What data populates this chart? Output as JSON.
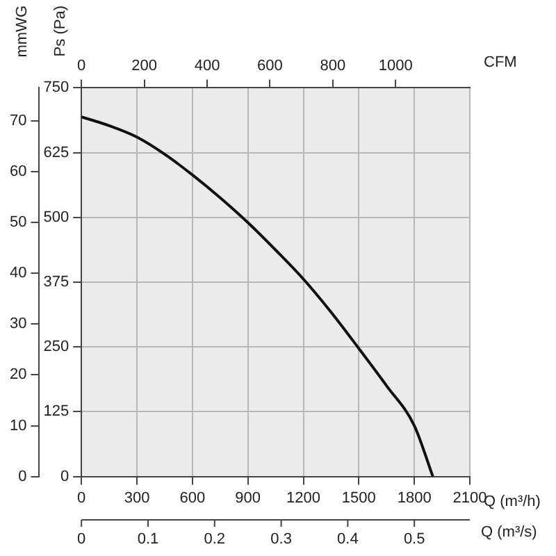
{
  "chart_data": {
    "type": "line",
    "xlabel": "Q (m³/h)",
    "x2label": "CFM",
    "ylabel": "Ps (Pa)",
    "y2label": "mmWG",
    "x": [
      0,
      150,
      300,
      450,
      600,
      750,
      900,
      1050,
      1200,
      1350,
      1500,
      1650,
      1800,
      1900
    ],
    "series": [
      {
        "color": "#111111",
        "values": [
          694,
          677,
          655,
          622,
          582,
          538,
          490,
          437,
          381,
          317,
          247,
          175,
          98,
          0
        ]
      }
    ],
    "xlim": [
      0,
      2100
    ],
    "xticks": [
      0,
      300,
      600,
      900,
      1200,
      1500,
      1800,
      2100
    ],
    "x2lim": [
      0,
      1236
    ],
    "x2ticks": [
      0,
      200,
      400,
      600,
      800,
      1000
    ],
    "annotations": [
      "Q (m³/s)",
      "0",
      "0.1",
      "0.2",
      "0.3",
      "0.4",
      "0.5"
    ],
    "ylim": [
      0,
      750
    ],
    "yticks": [
      0,
      125,
      250,
      375,
      500,
      625,
      750
    ],
    "y2lim": [
      0,
      76.5
    ],
    "y2ticks": [
      0,
      10,
      20,
      30,
      40,
      50,
      60,
      70
    ],
    "grid": true,
    "marker": "none",
    "line_style": "solid"
  }
}
